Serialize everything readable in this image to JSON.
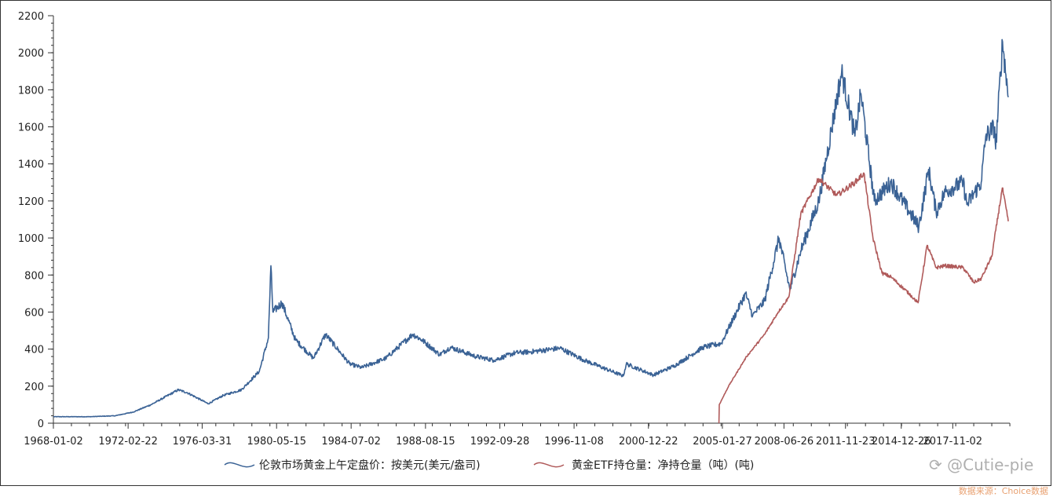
{
  "chart_data": {
    "type": "line",
    "title": "",
    "xlabel": "",
    "ylabel": "",
    "ylim": [
      0,
      2200
    ],
    "y_ticks": [
      0,
      200,
      400,
      600,
      800,
      1000,
      1200,
      1400,
      1600,
      1800,
      2000,
      2200
    ],
    "x_range": [
      "1968-01-02",
      "2020-12-31"
    ],
    "x_tick_labels": [
      "1968-01-02",
      "1972-02-22",
      "1976-03-31",
      "1980-05-15",
      "1984-07-02",
      "1988-08-15",
      "1992-09-28",
      "1996-11-08",
      "2000-12-22",
      "2005-01-27",
      "2008-06-26",
      "2011-11-23",
      "2014-12-26",
      "2017-11-02"
    ],
    "grid": false,
    "legend_position": "bottom",
    "series": [
      {
        "name": "伦敦市场黄金上午定盘价：按美元(美元/盎司)",
        "color": "#3a6295",
        "x": [
          "1968-01-02",
          "1970-01-02",
          "1971-06-01",
          "1972-06-01",
          "1973-06-01",
          "1974-12-01",
          "1975-06-01",
          "1976-08-01",
          "1977-06-01",
          "1978-06-01",
          "1979-06-01",
          "1979-12-01",
          "1980-01-21",
          "1980-03-01",
          "1980-09-01",
          "1981-06-01",
          "1982-06-01",
          "1983-02-01",
          "1984-06-01",
          "1985-02-01",
          "1986-06-01",
          "1987-12-01",
          "1988-06-01",
          "1989-06-01",
          "1990-01-01",
          "1991-06-01",
          "1992-06-01",
          "1993-08-01",
          "1994-06-01",
          "1996-02-01",
          "1997-06-01",
          "1999-08-01",
          "1999-10-01",
          "2001-04-01",
          "2002-06-01",
          "2004-01-01",
          "2005-01-01",
          "2006-05-12",
          "2006-10-01",
          "2007-06-01",
          "2008-03-17",
          "2008-10-24",
          "2009-06-01",
          "2010-06-01",
          "2011-09-06",
          "2012-06-01",
          "2012-10-01",
          "2013-06-28",
          "2014-06-01",
          "2015-12-17",
          "2016-07-01",
          "2016-12-01",
          "2017-06-01",
          "2018-06-01",
          "2018-08-16",
          "2019-06-01",
          "2019-09-01",
          "2020-03-01",
          "2020-03-19",
          "2020-08-06",
          "2020-11-30"
        ],
        "values": [
          35,
          35,
          40,
          60,
          100,
          180,
          165,
          105,
          150,
          180,
          280,
          460,
          850,
          600,
          650,
          450,
          350,
          480,
          320,
          300,
          350,
          480,
          450,
          370,
          410,
          360,
          340,
          380,
          385,
          405,
          340,
          255,
          320,
          260,
          310,
          410,
          430,
          700,
          580,
          660,
          1000,
          720,
          930,
          1200,
          1895,
          1550,
          1780,
          1200,
          1300,
          1060,
          1370,
          1140,
          1250,
          1300,
          1180,
          1300,
          1550,
          1600,
          1480,
          2060,
          1760
        ]
      },
      {
        "name": "黄金ETF持仓量：净持仓量（吨）(吨)",
        "color": "#b05a5a",
        "x": [
          "2004-11-18",
          "2004-11-25",
          "2005-06-01",
          "2006-06-01",
          "2006-12-01",
          "2007-06-01",
          "2008-03-01",
          "2008-10-01",
          "2009-06-01",
          "2010-06-01",
          "2011-06-01",
          "2012-06-01",
          "2012-12-01",
          "2013-06-01",
          "2013-12-01",
          "2014-06-01",
          "2015-06-01",
          "2015-12-01",
          "2016-06-01",
          "2016-12-01",
          "2017-06-01",
          "2018-06-01",
          "2019-01-01",
          "2019-06-01",
          "2020-01-01",
          "2020-08-01",
          "2020-11-30"
        ],
        "values": [
          0,
          100,
          200,
          360,
          420,
          480,
          600,
          680,
          1130,
          1320,
          1230,
          1300,
          1350,
          1000,
          810,
          790,
          700,
          650,
          960,
          840,
          850,
          840,
          760,
          780,
          900,
          1270,
          1090
        ]
      }
    ]
  },
  "watermark": "Cutie-pie",
  "source": "数据来源：Choice数据"
}
